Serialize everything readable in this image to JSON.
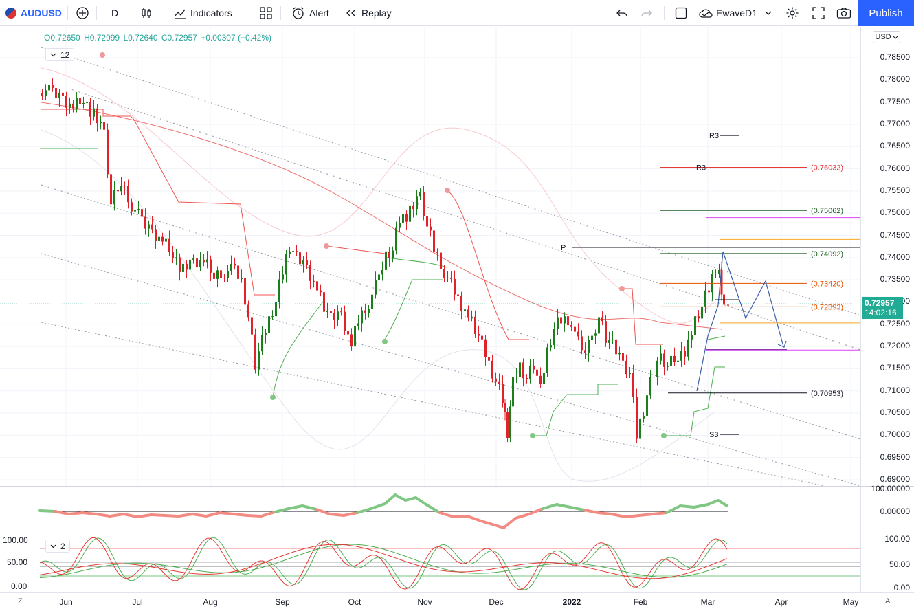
{
  "toolbar": {
    "symbol": "AUDUSD",
    "interval": "D",
    "indicators_label": "Indicators",
    "alert_label": "Alert",
    "replay_label": "Replay",
    "layout_name": "EwaveD1",
    "publish_label": "Publish"
  },
  "legend": {
    "open": "O0.72650",
    "high": "H0.72999",
    "low": "L0.72640",
    "close": "C0.72957",
    "change": "+0.00307 (+0.42%)",
    "main_indicator_count": "12",
    "osc_indicator_count": "2"
  },
  "price_axis": {
    "currency": "USD",
    "labels": [
      "0.78500",
      "0.78000",
      "0.77500",
      "0.77000",
      "0.76500",
      "0.76000",
      "0.75500",
      "0.75000",
      "0.74500",
      "0.74000",
      "0.73500",
      "0.73000",
      "0.72500",
      "0.72000",
      "0.71500",
      "0.71000",
      "0.70500",
      "0.70000",
      "0.69500",
      "0.69000"
    ],
    "current_price": "0.72957",
    "countdown": "14:02:16"
  },
  "osc1_axis": [
    "100.00000",
    "0.00000"
  ],
  "osc2_axis_right": [
    "100.00",
    "50.00",
    "0.00"
  ],
  "osc2_axis_left": [
    "100.00",
    "50.00",
    "0.00"
  ],
  "time_axis": [
    "Jun",
    "Jul",
    "Aug",
    "Sep",
    "Oct",
    "Nov",
    "Dec",
    "2022",
    "Feb",
    "Mar",
    "Apr",
    "May"
  ],
  "corner_left": "Z",
  "corner_right": "A",
  "levels": {
    "r3_a": "R3",
    "r3_b": "R3",
    "p": "P",
    "s3": "S3",
    "fib_76032": "(0.76032)",
    "fib_75062": "(0.75062)",
    "fib_74092": "(0.74092)",
    "fib_73420": "(0.73420)",
    "fib_72893": "(0.72893)",
    "fib_70953": "(0.70953)"
  },
  "colors": {
    "up": "#26a69a",
    "up_candle": "#1b7d1b",
    "down_candle": "#e0232a",
    "accent": "#2962ff",
    "price_tag": "#22ab94"
  }
}
